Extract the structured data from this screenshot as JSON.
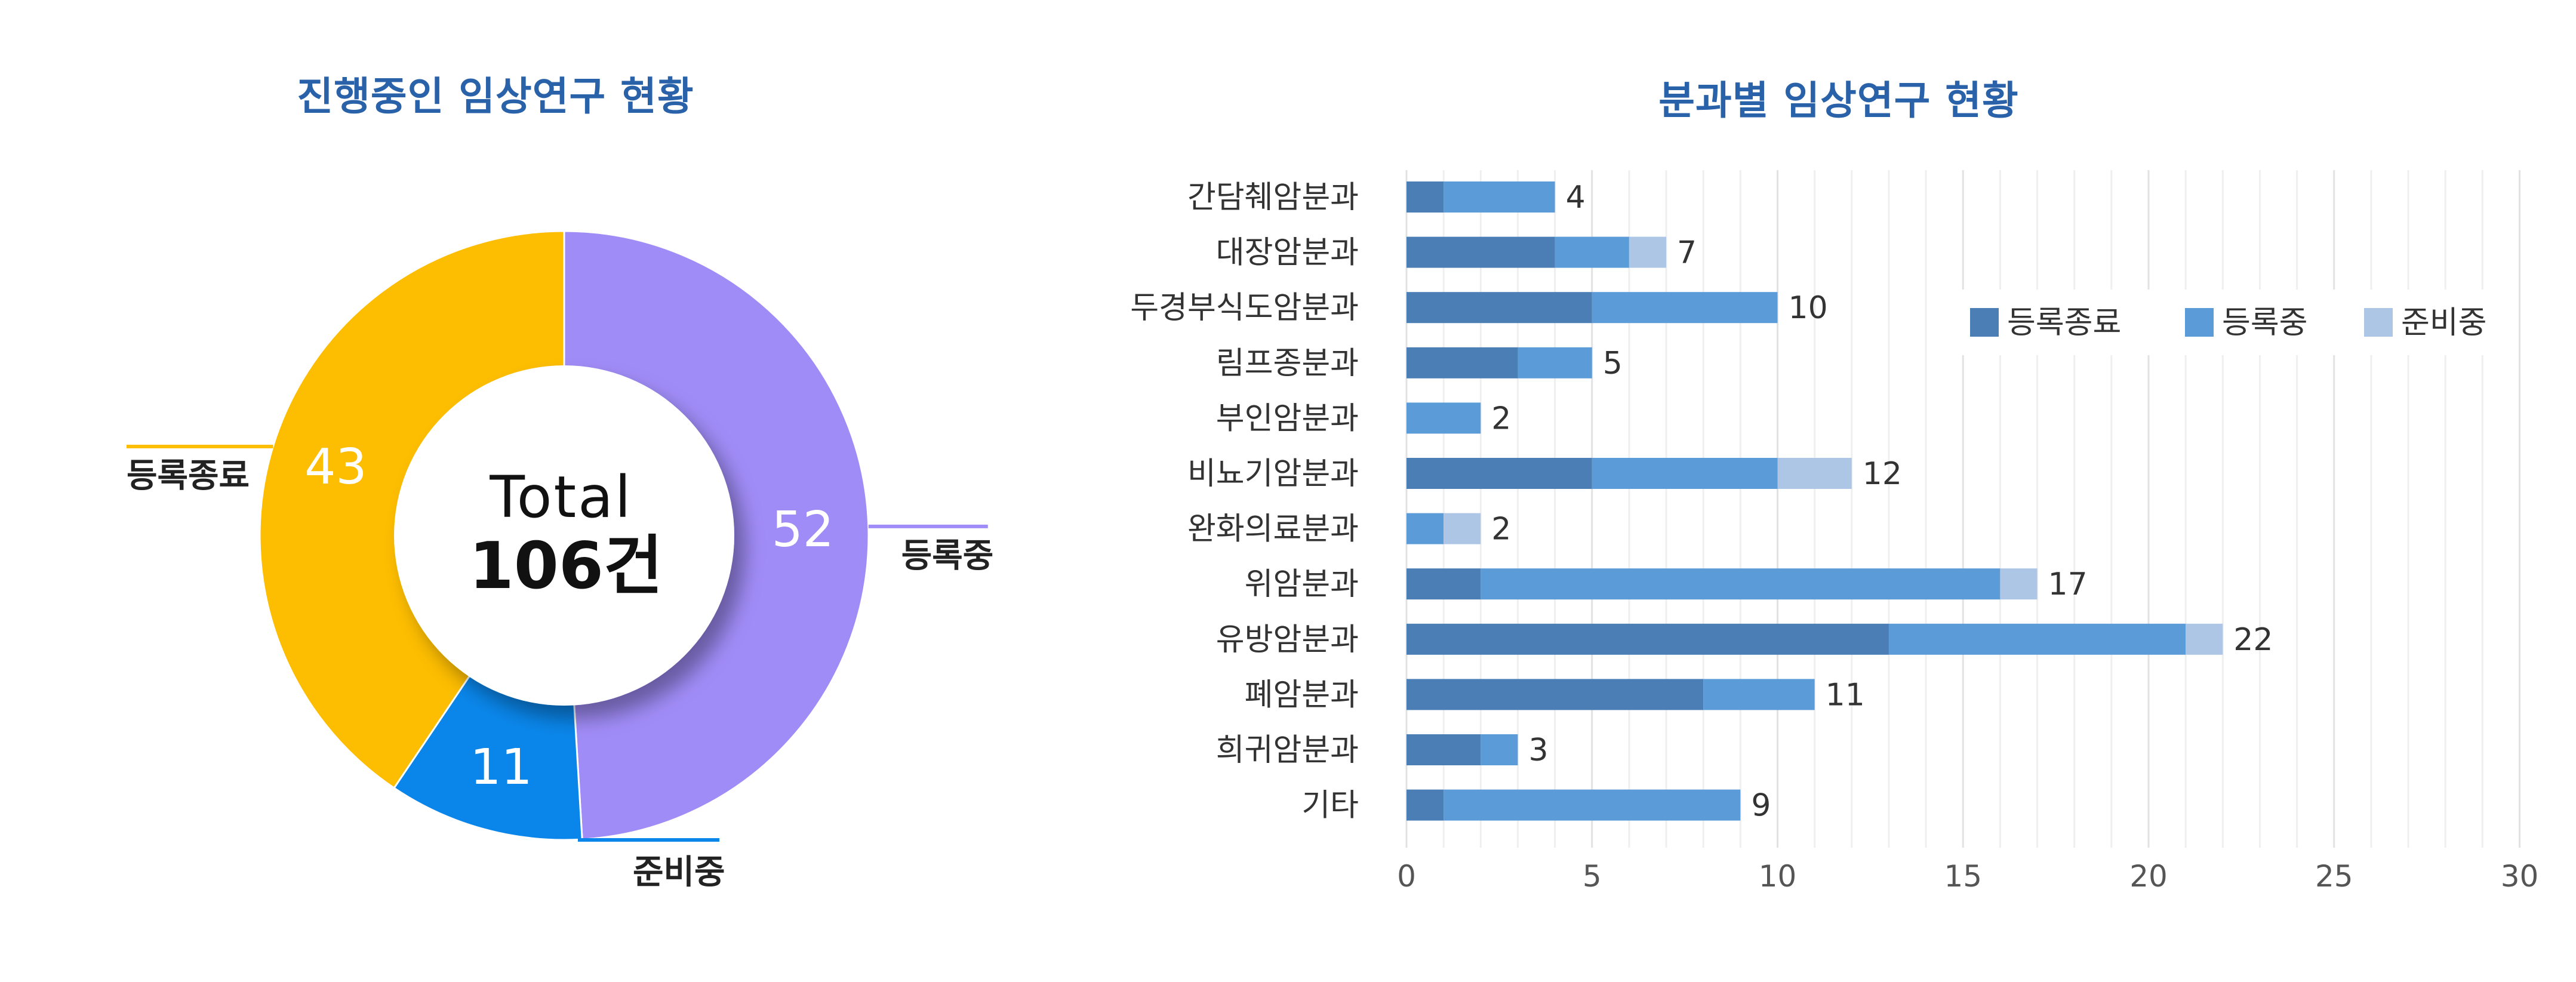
{
  "chart_data": [
    {
      "type": "pie",
      "title": "진행중인 임상연구 현황",
      "center_label_top": "Total",
      "center_label_bottom": "106건",
      "slices": [
        {
          "name": "등록중",
          "value": 52,
          "color": "#a08cf7"
        },
        {
          "name": "준비중",
          "value": 11,
          "color": "#0a86ea"
        },
        {
          "name": "등록종료",
          "value": 43,
          "color": "#fdbd00"
        }
      ]
    },
    {
      "type": "bar",
      "orientation": "horizontal",
      "stacked": true,
      "title": "분과별 임상연구 현황",
      "categories": [
        "간담췌암분과",
        "대장암분과",
        "두경부식도암분과",
        "림프종분과",
        "부인암분과",
        "비뇨기암분과",
        "완화의료분과",
        "위암분과",
        "유방암분과",
        "폐암분과",
        "희귀암분과",
        "기타"
      ],
      "series": [
        {
          "name": "등록종료",
          "color": "#4a7eb5",
          "values": [
            1,
            4,
            5,
            3,
            0,
            5,
            0,
            2,
            13,
            8,
            2,
            1
          ]
        },
        {
          "name": "등록중",
          "color": "#5b9bd8",
          "values": [
            3,
            2,
            5,
            2,
            2,
            5,
            1,
            14,
            8,
            3,
            1,
            8
          ]
        },
        {
          "name": "준비중",
          "color": "#adc6e6",
          "values": [
            0,
            1,
            0,
            0,
            0,
            2,
            1,
            1,
            1,
            0,
            0,
            0
          ]
        }
      ],
      "totals": [
        "4",
        "7",
        "10",
        "5",
        "2",
        "12",
        "2",
        "17",
        "22",
        "11",
        "3",
        "9"
      ],
      "xticks": [
        "0",
        "5",
        "10",
        "15",
        "20",
        "25",
        "30"
      ],
      "xlim": [
        0,
        30
      ],
      "grid": true,
      "legend": "top-right"
    }
  ]
}
